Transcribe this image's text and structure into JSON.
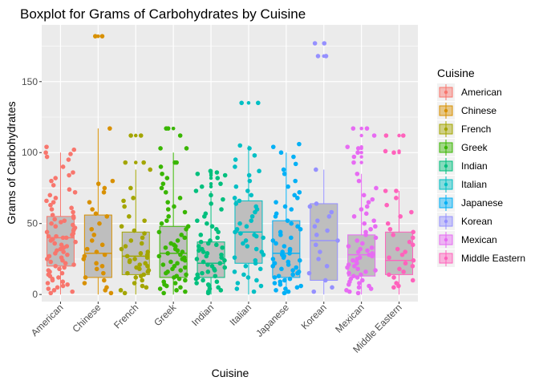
{
  "chart_data": {
    "type": "boxplot",
    "title": "Boxplot for Grams of Carbohydrates by Cuisine",
    "xlabel": "Cuisine",
    "ylabel": "Grams of Carbohydrates",
    "ylim": [
      -5,
      190
    ],
    "yticks": [
      0,
      50,
      100,
      150
    ],
    "grid": true,
    "legend": {
      "title": "Cuisine",
      "position": "right"
    },
    "categories": [
      "American",
      "Chinese",
      "French",
      "Greek",
      "Indian",
      "Italian",
      "Japanese",
      "Korean",
      "Mexican",
      "Middle Eastern"
    ],
    "colors": [
      "#F8766D",
      "#D89000",
      "#A3A500",
      "#39B600",
      "#00BF7D",
      "#00BFC4",
      "#00B0F6",
      "#9590FF",
      "#E76BF3",
      "#FF62BC"
    ],
    "series": [
      {
        "name": "American",
        "box": {
          "q1": 20,
          "median": 40,
          "q3": 55,
          "whisker_low": 0,
          "whisker_high": 100
        },
        "outliers": [],
        "points": [
          4,
          99,
          102,
          104,
          100,
          97,
          95,
          90,
          86,
          84,
          82,
          80,
          77,
          74,
          72,
          70,
          68,
          66,
          65,
          63,
          61,
          60,
          58,
          56,
          55,
          54,
          53,
          52,
          51,
          50,
          49,
          48,
          47,
          46,
          45,
          44,
          43,
          42,
          41,
          41,
          40,
          40,
          39,
          38,
          37,
          36,
          35,
          34,
          33,
          32,
          31,
          30,
          29,
          28,
          27,
          26,
          25,
          24,
          23,
          22,
          21,
          20,
          19,
          18,
          17,
          16,
          15,
          14,
          13,
          12,
          11,
          10,
          9,
          8,
          7,
          6,
          5,
          3,
          2,
          1
        ]
      },
      {
        "name": "Chinese",
        "box": {
          "q1": 12,
          "median": 29,
          "q3": 56,
          "whisker_low": 0,
          "whisker_high": 117
        },
        "outliers": [
          182,
          182
        ],
        "points": [
          182,
          182,
          117,
          80,
          78,
          75,
          72,
          65,
          60,
          57,
          55,
          50,
          46,
          42,
          38,
          35,
          32,
          30,
          28,
          27,
          25,
          22,
          20,
          18,
          15,
          12,
          10,
          8,
          5,
          3,
          1
        ]
      },
      {
        "name": "French",
        "box": {
          "q1": 14,
          "median": 27,
          "q3": 44,
          "whisker_low": 0,
          "whisker_high": 88
        },
        "outliers": [
          112,
          112,
          93,
          93
        ],
        "points": [
          112,
          112,
          93,
          93,
          88,
          75,
          68,
          66,
          62,
          55,
          52,
          48,
          45,
          43,
          40,
          38,
          36,
          34,
          32,
          30,
          29,
          28,
          27,
          26,
          25,
          24,
          23,
          22,
          21,
          20,
          19,
          18,
          17,
          16,
          15,
          14,
          13,
          12,
          10,
          8,
          6,
          5,
          3,
          1
        ]
      },
      {
        "name": "Greek",
        "box": {
          "q1": 12,
          "median": 29,
          "q3": 48,
          "whisker_low": 0,
          "whisker_high": 100
        },
        "outliers": [
          117,
          117
        ],
        "points": [
          117,
          117,
          112,
          103,
          103,
          93,
          93,
          90,
          85,
          82,
          78,
          75,
          72,
          68,
          65,
          62,
          60,
          58,
          55,
          52,
          50,
          48,
          46,
          44,
          42,
          40,
          38,
          36,
          35,
          34,
          33,
          32,
          31,
          30,
          29,
          28,
          27,
          26,
          25,
          24,
          23,
          22,
          21,
          20,
          19,
          18,
          17,
          16,
          15,
          14,
          13,
          12,
          11,
          10,
          9,
          8,
          7,
          6,
          5,
          4,
          3,
          2,
          1
        ]
      },
      {
        "name": "Indian",
        "box": {
          "q1": 12,
          "median": 22,
          "q3": 37,
          "whisker_low": 0,
          "whisker_high": 73
        },
        "outliers": [
          87,
          86,
          85,
          84,
          82,
          78,
          76
        ],
        "points": [
          87,
          86,
          85,
          84,
          82,
          78,
          76,
          73,
          70,
          67,
          64,
          60,
          57,
          55,
          52,
          50,
          48,
          46,
          44,
          42,
          40,
          38,
          37,
          36,
          35,
          34,
          33,
          32,
          31,
          30,
          29,
          28,
          27,
          26,
          25,
          24,
          23,
          22,
          21,
          20,
          19,
          18,
          17,
          16,
          15,
          14,
          13,
          12,
          11,
          10,
          9,
          8,
          7,
          6,
          5,
          4,
          3,
          2,
          1
        ]
      },
      {
        "name": "Italian",
        "box": {
          "q1": 22,
          "median": 44,
          "q3": 66,
          "whisker_low": 0,
          "whisker_high": 105
        },
        "outliers": [
          135,
          135
        ],
        "points": [
          135,
          135,
          105,
          103,
          98,
          95,
          90,
          87,
          84,
          80,
          76,
          73,
          70,
          68,
          66,
          64,
          62,
          60,
          58,
          55,
          52,
          50,
          48,
          46,
          44,
          43,
          42,
          41,
          40,
          38,
          36,
          34,
          32,
          30,
          28,
          26,
          24,
          22,
          20,
          18,
          16,
          14,
          12,
          10,
          8,
          6,
          4,
          2
        ]
      },
      {
        "name": "Japanese",
        "box": {
          "q1": 12,
          "median": 29,
          "q3": 52,
          "whisker_low": 0,
          "whisker_high": 100
        },
        "outliers": [],
        "points": [
          106,
          104,
          100,
          97,
          92,
          88,
          85,
          80,
          76,
          72,
          70,
          68,
          65,
          62,
          60,
          57,
          55,
          52,
          50,
          48,
          46,
          44,
          42,
          40,
          38,
          36,
          34,
          32,
          31,
          30,
          29,
          28,
          27,
          26,
          25,
          24,
          23,
          22,
          21,
          20,
          19,
          18,
          17,
          16,
          15,
          14,
          13,
          12,
          11,
          10,
          9,
          8,
          7,
          6,
          5,
          4,
          3,
          2,
          1
        ]
      },
      {
        "name": "Korean",
        "box": {
          "q1": 10,
          "median": 38,
          "q3": 64,
          "whisker_low": 0,
          "whisker_high": 88
        },
        "outliers": [
          177,
          177,
          168,
          168
        ],
        "points": [
          177,
          177,
          168,
          168,
          88,
          64,
          62,
          58,
          55,
          52,
          48,
          45,
          42,
          38,
          35,
          30,
          25,
          20,
          15,
          10,
          5,
          2
        ]
      },
      {
        "name": "Mexican",
        "box": {
          "q1": 13,
          "median": 28,
          "q3": 42,
          "whisker_low": 0,
          "whisker_high": 85
        },
        "outliers": [
          117,
          117,
          112,
          104,
          103,
          100,
          97,
          93
        ],
        "points": [
          117,
          117,
          112,
          104,
          103,
          100,
          97,
          93,
          85,
          80,
          75,
          70,
          67,
          65,
          62,
          60,
          57,
          55,
          52,
          50,
          48,
          46,
          44,
          42,
          40,
          38,
          36,
          34,
          33,
          32,
          31,
          30,
          29,
          28,
          27,
          26,
          25,
          24,
          23,
          22,
          21,
          20,
          19,
          18,
          17,
          16,
          15,
          14,
          13,
          12,
          11,
          10,
          9,
          8,
          7,
          6,
          5,
          4,
          3,
          2,
          1
        ]
      },
      {
        "name": "Middle Eastern",
        "box": {
          "q1": 14,
          "median": 24,
          "q3": 44,
          "whisker_low": 0,
          "whisker_high": 73
        },
        "outliers": [
          112,
          112,
          101,
          100
        ],
        "points": [
          112,
          112,
          101,
          100,
          73,
          73,
          68,
          63,
          58,
          55,
          50,
          46,
          44,
          42,
          40,
          37,
          35,
          32,
          30,
          28,
          26,
          24,
          22,
          20,
          18,
          16,
          14,
          12,
          10,
          8,
          6,
          5
        ]
      }
    ]
  }
}
